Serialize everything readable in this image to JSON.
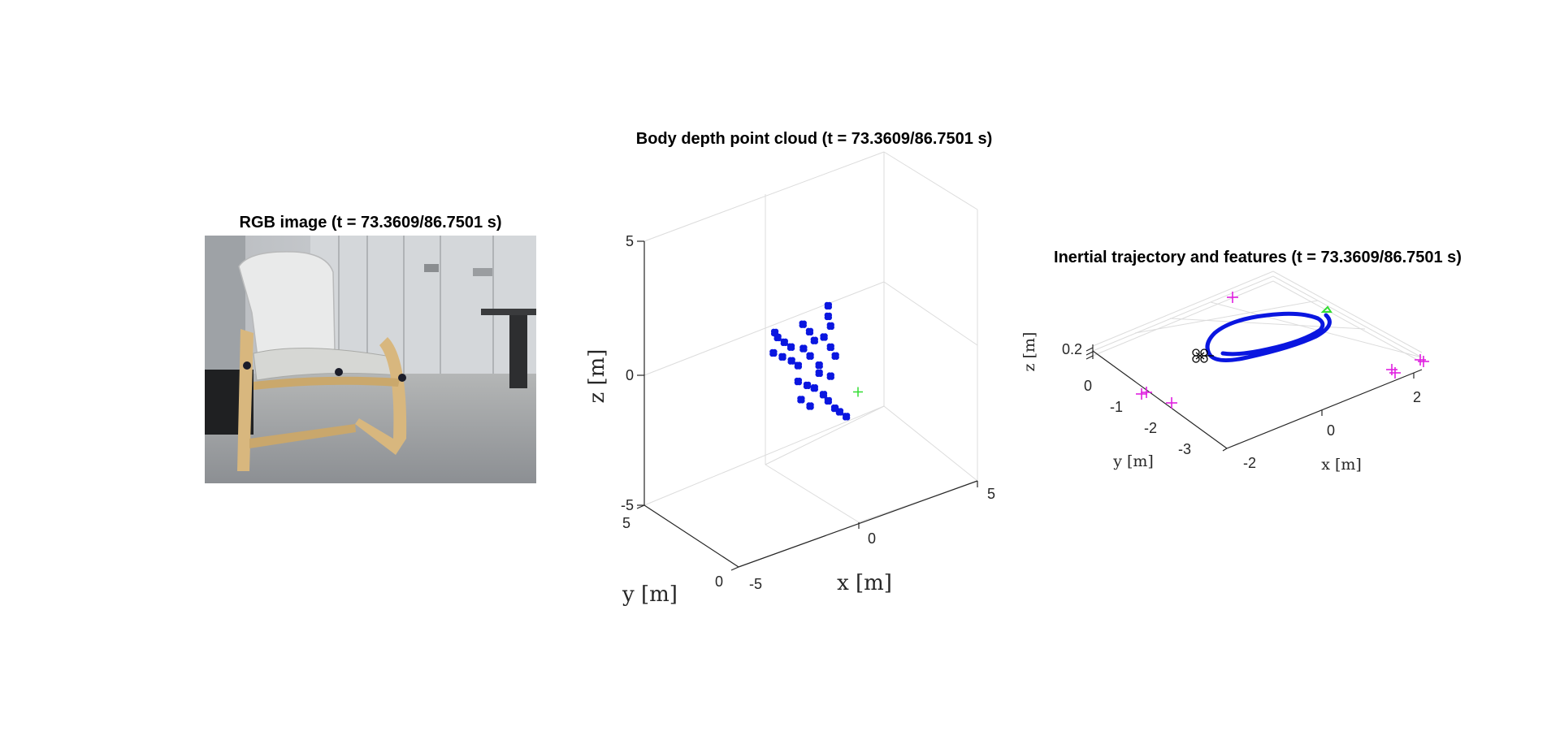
{
  "panels": {
    "rgb": {
      "title": "RGB image (t = 73.3609/86.7501 s)"
    },
    "cloud": {
      "title": "Body depth point cloud (t = 73.3609/86.7501 s)"
    },
    "traj": {
      "title": "Inertial trajectory and features (t = 73.3609/86.7501 s)"
    }
  },
  "chart_data": [
    {
      "type": "image",
      "title": "RGB image (t = 73.3609/86.7501 s)",
      "content": "camera frame"
    },
    {
      "type": "scatter",
      "title": "Body depth point cloud (t = 73.3609/86.7501 s)",
      "xlabel": "x [m]",
      "ylabel": "y [m]",
      "zlabel": "z [m]",
      "xticks": [
        "-5",
        "0",
        "5"
      ],
      "yticks": [
        "0",
        "5"
      ],
      "zticks": [
        "-5",
        "0",
        "5"
      ],
      "xlim": [
        -5,
        5
      ],
      "ylim": [
        0,
        5
      ],
      "zlim": [
        -5,
        5
      ],
      "grid": true,
      "colors": {
        "points": "#0a16e0",
        "origin": "#33dd33"
      },
      "origin_marker": {
        "x": 0,
        "y": 0,
        "z": 0,
        "marker": "+"
      },
      "series": [
        {
          "points": [
            [
              -2.3,
              1.5,
              2.3
            ],
            [
              -2.1,
              1.6,
              2.0
            ],
            [
              -1.9,
              1.5,
              1.8
            ],
            [
              -1.7,
              1.4,
              1.6
            ],
            [
              -2.2,
              1.7,
              1.4
            ],
            [
              -1.9,
              1.6,
              1.2
            ],
            [
              -1.6,
              1.5,
              1.0
            ],
            [
              -1.4,
              1.4,
              0.8
            ],
            [
              -1.2,
              1.4,
              2.3
            ],
            [
              -1.0,
              1.3,
              2.0
            ],
            [
              -0.8,
              1.3,
              1.6
            ],
            [
              -1.1,
              1.5,
              1.3
            ],
            [
              -0.9,
              1.4,
              1.0
            ],
            [
              -0.6,
              1.3,
              0.6
            ],
            [
              -0.3,
              1.2,
              2.8
            ],
            [
              -0.3,
              1.2,
              2.4
            ],
            [
              -0.2,
              1.2,
              2.0
            ],
            [
              -0.4,
              1.3,
              1.6
            ],
            [
              -0.2,
              1.2,
              1.2
            ],
            [
              0.0,
              1.2,
              0.8
            ],
            [
              -1.4,
              1.4,
              0.2
            ],
            [
              -1.1,
              1.3,
              0.0
            ],
            [
              -0.8,
              1.3,
              -0.2
            ],
            [
              -0.5,
              1.2,
              -0.5
            ],
            [
              -0.3,
              1.2,
              -0.8
            ],
            [
              -0.1,
              1.1,
              -1.1
            ],
            [
              0.1,
              1.1,
              -1.3
            ],
            [
              0.3,
              1.0,
              -1.5
            ],
            [
              -1.2,
              1.5,
              -0.6
            ],
            [
              -0.9,
              1.4,
              -0.9
            ],
            [
              -0.6,
              1.3,
              0.3
            ],
            [
              -0.2,
              1.2,
              0.1
            ]
          ]
        }
      ]
    },
    {
      "type": "line",
      "title": "Inertial trajectory and features (t = 73.3609/86.7501 s)",
      "xlabel": "x [m]",
      "ylabel": "y [m]",
      "zlabel": "z [m]",
      "xticks": [
        "-2",
        "0",
        "2"
      ],
      "yticks": [
        "0",
        "-1",
        "-2",
        "-3"
      ],
      "zticks": [
        "0.2"
      ],
      "grid": true,
      "colors": {
        "trajectory": "#0a16e0",
        "features": "#e020e0",
        "start": "#33dd33",
        "vehicle": "#000000"
      },
      "trajectory_name": "",
      "feature_markers": "+",
      "vehicle_marker": "quadrotor"
    }
  ]
}
